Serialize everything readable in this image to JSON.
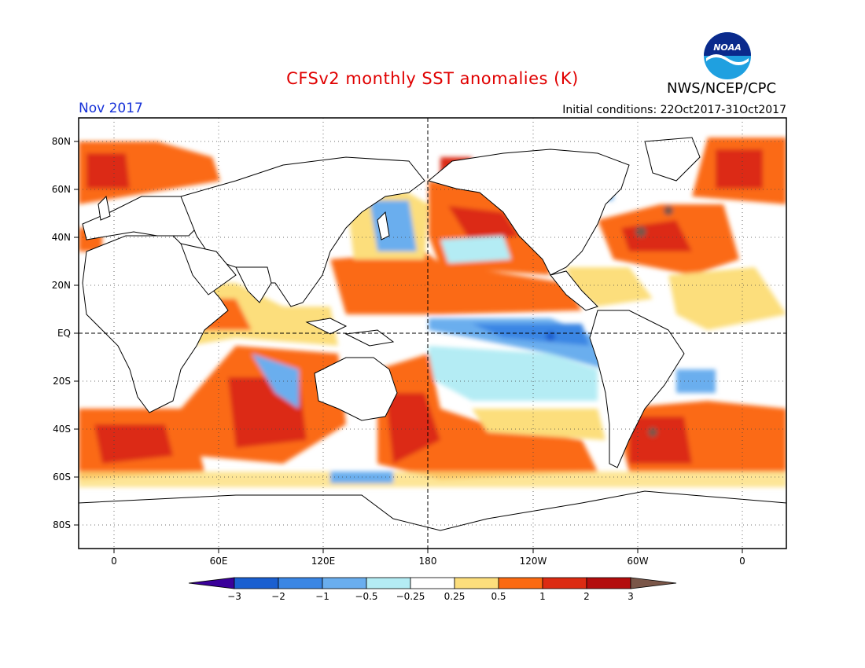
{
  "header": {
    "title": "CFSv2 monthly SST anomalies (K)",
    "month": "Nov 2017",
    "initial_conditions": "Initial conditions: 22Oct2017-31Oct2017",
    "agency": "NWS/NCEP/CPC",
    "logo_text": "NOAA"
  },
  "map": {
    "lat_labels": [
      "80N",
      "60N",
      "40N",
      "20N",
      "EQ",
      "20S",
      "40S",
      "60S",
      "80S"
    ],
    "lon_labels": [
      "0",
      "60E",
      "120E",
      "180",
      "120W",
      "60W",
      "0"
    ],
    "equator_dashed": true,
    "dateline_dashed": true,
    "gridlines_dotted": true
  },
  "colorbar": {
    "labels": [
      "-3",
      "-2",
      "-1",
      "-0.5",
      "-0.25",
      "0.25",
      "0.5",
      "1",
      "2",
      "3"
    ],
    "colors": [
      "#3a009a",
      "#1a5fd0",
      "#3a86e4",
      "#6aaeee",
      "#b4ecf4",
      "#ffffff",
      "#fcde7c",
      "#fb6a12",
      "#dc2b12",
      "#b30d0d",
      "#7a5648"
    ]
  },
  "colors": {
    "title": "#e00000",
    "month": "#1530d8",
    "land_outline": "#000000"
  }
}
